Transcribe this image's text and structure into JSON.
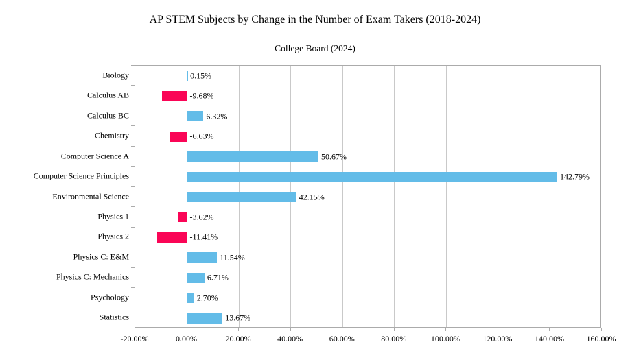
{
  "chart_data": {
    "type": "bar",
    "orientation": "horizontal",
    "title": "AP STEM Subjects by Change in the Number of Exam Takers (2018-2024)",
    "subtitle": "College Board (2024)",
    "categories": [
      "Biology",
      "Calculus AB",
      "Calculus BC",
      "Chemistry",
      "Computer Science A",
      "Computer Science Principles",
      "Environmental Science",
      "Physics 1",
      "Physics 2",
      "Physics C: E&M",
      "Physics C: Mechanics",
      "Psychology",
      "Statistics"
    ],
    "values": [
      0.15,
      -9.68,
      6.32,
      -6.63,
      50.67,
      142.79,
      42.15,
      -3.62,
      -11.41,
      11.54,
      6.71,
      2.7,
      13.67
    ],
    "value_labels": [
      "0.15%",
      "-9.68%",
      "6.32%",
      "-6.63%",
      "50.67%",
      "142.79%",
      "42.15%",
      "-3.62%",
      "-11.41%",
      "11.54%",
      "6.71%",
      "2.70%",
      "13.67%"
    ],
    "xlim": [
      -20,
      160
    ],
    "x_tick_step": 20,
    "x_tick_labels": [
      "-20.00%",
      "0.00%",
      "20.00%",
      "40.00%",
      "60.00%",
      "80.00%",
      "100.00%",
      "120.00%",
      "140.00%",
      "160.00%"
    ],
    "grid": true,
    "legend": false,
    "colors": {
      "positive_bar": "#63BCE8",
      "negative_bar": "#FA0556",
      "gridline": "#C9C9C9",
      "axis_frame": "#ABABAB",
      "text": "#000000",
      "background": "#FFFFFF"
    }
  }
}
